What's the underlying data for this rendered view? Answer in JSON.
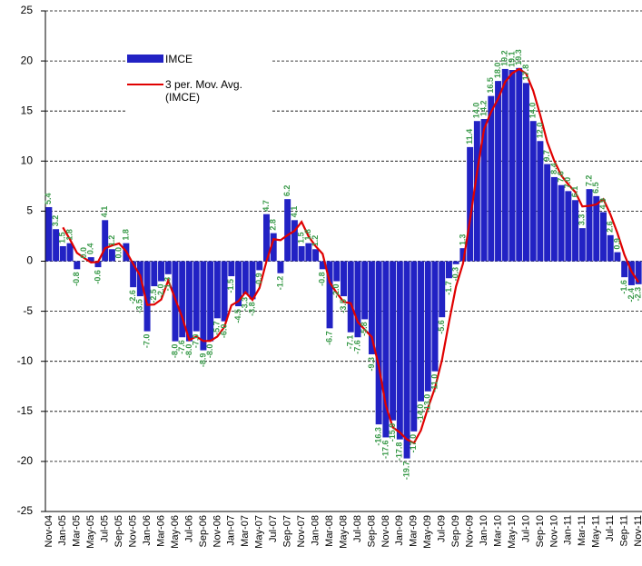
{
  "chart_data": {
    "type": "bar",
    "categories": [
      "Nov-04",
      null,
      "Jan-05",
      null,
      "Mar-05",
      null,
      "May-05",
      null,
      "Jul-05",
      null,
      "Sep-05",
      null,
      "Nov-05",
      null,
      "Jan-06",
      null,
      "Mar-06",
      null,
      "May-06",
      null,
      "Jul-06",
      null,
      "Sep-06",
      null,
      "Nov-06",
      null,
      "Jan-07",
      null,
      "Mar-07",
      null,
      "May-07",
      null,
      "Jul-07",
      null,
      "Sep-07",
      null,
      "Nov-07",
      null,
      "Jan-08",
      null,
      "Mar-08",
      null,
      "May-08",
      null,
      "Jul-08",
      null,
      "Sep-08",
      null,
      "Nov-08",
      null,
      "Jan-09",
      null,
      "Mar-09",
      null,
      "May-09",
      null,
      "Jul-09",
      null,
      "Sep-09",
      null,
      "Nov-09",
      null,
      "Jan-10",
      null,
      "Mar-10",
      null,
      "May-10",
      null,
      "Jul-10",
      null,
      "Sep-10",
      null,
      "Nov-10",
      null,
      "Jan-11",
      null,
      "Mar-11",
      null,
      "May-11",
      null,
      "Jul-11",
      null,
      "Sep-11",
      null,
      "Nov-11"
    ],
    "series": [
      {
        "name": "IMCE",
        "color": "#2222c4",
        "values": [
          5.4,
          3.2,
          1.5,
          1.8,
          -0.8,
          0.0,
          0.4,
          -0.6,
          4.1,
          1.2,
          0.0,
          1.8,
          -2.6,
          -3.5,
          -7.0,
          -2.5,
          -2.0,
          -1.3,
          -8.0,
          -7.6,
          -8.0,
          -7.0,
          -8.9,
          -8.0,
          -5.7,
          -6.0,
          -1.5,
          -4.5,
          -3.3,
          -3.8,
          -0.9,
          4.7,
          2.8,
          -1.2,
          6.2,
          4.1,
          1.5,
          1.8,
          1.2,
          -0.8,
          -6.7,
          -2.0,
          -3.5,
          -7.1,
          -7.6,
          -5.8,
          -9.3,
          -16.3,
          -17.6,
          -15.9,
          -17.8,
          -19.7,
          -17.0,
          -14.0,
          -13.0,
          -11.0,
          -5.6,
          -1.7,
          -0.3,
          1.3,
          11.4,
          14.0,
          14.2,
          16.5,
          18.0,
          19.2,
          19.1,
          19.3,
          17.8,
          14.0,
          12.0,
          9.7,
          8.4,
          7.6,
          7.0,
          6.1,
          3.3,
          7.2,
          6.5,
          4.9,
          2.6,
          0.9,
          -1.6,
          -2.4,
          -2.3
        ],
        "value_labels": [
          "5.4",
          "3.2",
          "1.5",
          "1.8",
          "-0.8",
          "0.0",
          "0.4",
          "-0.6",
          "4.1",
          "1.2",
          "0.0",
          "1.8",
          "-2.6",
          "-3.5",
          "-7.0",
          "-2.5",
          "-2.0",
          "-1.3",
          "-8.0",
          "-7.6",
          "-8.0",
          "-7.0",
          "-8.9",
          "-8.0",
          "-5.7",
          "-6.0",
          "-1.5",
          "-4.5",
          "-3.3",
          "-3.8",
          "-0.9",
          "4.7",
          "2.8",
          "-1.2",
          "6.2",
          "4.1",
          "1.5",
          "1.8",
          "1.2",
          "-0.8",
          "-6.7",
          "-2.0",
          "-3.5",
          "-7.1",
          "-7.6",
          "-5.8",
          "-9.3",
          "-16.3",
          "-17.6",
          "-15.9",
          "-17.8",
          "-19.7",
          "-17.0",
          "-14.0",
          "-13.0",
          "-11.0",
          "-5.6",
          "-1.7",
          "-0.3",
          "1.3",
          "11.4",
          "14.0",
          "14.2",
          "16.5",
          "18.0",
          "19.2",
          "19.1",
          "19.3",
          "17.8",
          "14.0",
          "12.0",
          "9.7",
          "8.4",
          "7.6",
          "7.0",
          "6.1",
          "3.3",
          "7.2",
          "6.5",
          "4.9",
          "2.6",
          "0.9",
          "-1.6",
          "-2.4",
          "-2.3"
        ]
      },
      {
        "name": "3 per. Mov. Avg. (IMCE)",
        "color": "#e00000",
        "type": "line",
        "values": [
          null,
          null,
          3.37,
          2.17,
          0.83,
          0.33,
          -0.13,
          -0.07,
          1.3,
          1.57,
          1.77,
          1.0,
          -0.27,
          -1.43,
          -4.37,
          -4.33,
          -3.83,
          -1.93,
          -3.77,
          -5.63,
          -7.87,
          -7.53,
          -7.97,
          -7.97,
          -7.53,
          -6.57,
          -4.4,
          -4.0,
          -3.1,
          -3.87,
          -2.67,
          0,
          2.2,
          2.1,
          2.6,
          3.03,
          3.93,
          2.47,
          1.5,
          0.73,
          -2.1,
          -3.17,
          -4.07,
          -4.2,
          -6.07,
          -6.83,
          -7.57,
          -10.47,
          -14.4,
          -16.6,
          -17.1,
          -17.8,
          -18.17,
          -16.9,
          -14.67,
          -12.67,
          -9.87,
          -6.1,
          -2.53,
          -0.23,
          4.13,
          8.9,
          13.2,
          14.9,
          16.23,
          17.9,
          18.77,
          19.2,
          18.73,
          17.03,
          14.6,
          11.9,
          10.03,
          8.57,
          7.67,
          6.9,
          5.47,
          5.53,
          5.67,
          6.2,
          4.67,
          2.8,
          0.63,
          -1.03,
          -2.1
        ]
      }
    ],
    "ylim": [
      -25,
      25
    ],
    "yticks": [
      -25,
      -20,
      -15,
      -10,
      -5,
      0,
      5,
      10,
      15,
      20,
      25
    ],
    "grid": true
  }
}
